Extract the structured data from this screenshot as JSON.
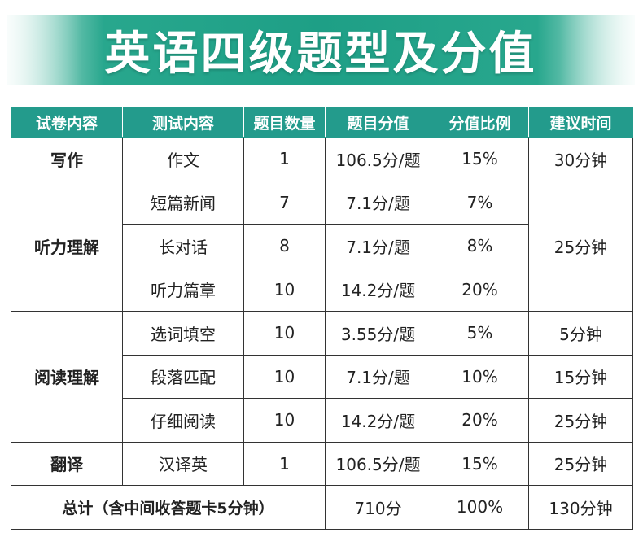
{
  "title": "英语四级题型及分值",
  "colors": {
    "header_bg": "#239b8c",
    "header_text": "#ffffff",
    "banner_accent": "#1e9f86",
    "border": "#333333"
  },
  "table": {
    "headers": [
      "试卷内容",
      "测试内容",
      "题目数量",
      "题目分值",
      "分值比例",
      "建议时间"
    ],
    "sections": {
      "writing": "写作",
      "listening": "听力理解",
      "reading": "阅读理解",
      "translation": "翻译"
    },
    "rows": [
      {
        "content": "作文",
        "count": "1",
        "score": "106.5分/题",
        "ratio": "15%",
        "time": "30分钟"
      },
      {
        "content": "短篇新闻",
        "count": "7",
        "score": "7.1分/题",
        "ratio": "7%",
        "time": "25分钟"
      },
      {
        "content": "长对话",
        "count": "8",
        "score": "7.1分/题",
        "ratio": "8%"
      },
      {
        "content": "听力篇章",
        "count": "10",
        "score": "14.2分/题",
        "ratio": "20%"
      },
      {
        "content": "选词填空",
        "count": "10",
        "score": "3.55分/题",
        "ratio": "5%",
        "time": "5分钟"
      },
      {
        "content": "段落匹配",
        "count": "10",
        "score": "7.1分/题",
        "ratio": "10%",
        "time": "15分钟"
      },
      {
        "content": "仔细阅读",
        "count": "10",
        "score": "14.2分/题",
        "ratio": "20%",
        "time": "25分钟"
      },
      {
        "content": "汉译英",
        "count": "1",
        "score": "106.5分/题",
        "ratio": "15%",
        "time": "25分钟"
      }
    ],
    "total": {
      "label": "总计（含中间收答题卡5分钟）",
      "score": "710分",
      "ratio": "100%",
      "time": "130分钟"
    }
  }
}
